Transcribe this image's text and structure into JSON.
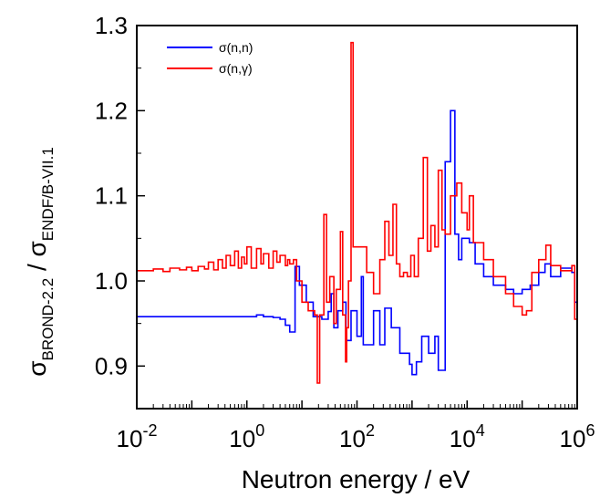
{
  "chart_data": {
    "type": "line",
    "xscale": "log",
    "xlim": [
      0.01,
      1000000
    ],
    "ylim": [
      0.85,
      1.3
    ],
    "xlabel": "Neutron energy / eV",
    "ylabel": {
      "base": "σ",
      "numerator_subscript": "BROND-2.2",
      "separator": " / ",
      "denominator_subscript": "ENDF/B-VII.1"
    },
    "x_ticks": [
      {
        "value": 0.01,
        "base": "10",
        "exp": "-2"
      },
      {
        "value": 1,
        "base": "10",
        "exp": "0"
      },
      {
        "value": 100,
        "base": "10",
        "exp": "2"
      },
      {
        "value": 10000,
        "base": "10",
        "exp": "4"
      },
      {
        "value": 1000000,
        "base": "10",
        "exp": "6"
      }
    ],
    "y_ticks": [
      {
        "value": 0.9,
        "label": "0.9"
      },
      {
        "value": 1.0,
        "label": "1.0"
      },
      {
        "value": 1.1,
        "label": "1.1"
      },
      {
        "value": 1.2,
        "label": "1.2"
      },
      {
        "value": 1.3,
        "label": "1.3"
      }
    ],
    "grid": false,
    "legend_position": "top-left",
    "series": [
      {
        "name": "σ(n,n)",
        "color": "#0000ff",
        "step": true,
        "points": [
          [
            0.01,
            0.958
          ],
          [
            1.0,
            0.958
          ],
          [
            1.5,
            0.96
          ],
          [
            2,
            0.958
          ],
          [
            3,
            0.957
          ],
          [
            4,
            0.955
          ],
          [
            5,
            0.948
          ],
          [
            6,
            0.94
          ],
          [
            7.5,
            1.017
          ],
          [
            9,
            0.995
          ],
          [
            12,
            0.975
          ],
          [
            16,
            0.958
          ],
          [
            23,
            0.955
          ],
          [
            30,
            0.964
          ],
          [
            34,
            0.985
          ],
          [
            38,
            0.945
          ],
          [
            45,
            0.965
          ],
          [
            55,
            0.975
          ],
          [
            63,
            0.93
          ],
          [
            78,
            0.965
          ],
          [
            100,
            0.935
          ],
          [
            120,
            1.005
          ],
          [
            130,
            0.925
          ],
          [
            200,
            0.965
          ],
          [
            260,
            0.925
          ],
          [
            320,
            0.968
          ],
          [
            420,
            0.945
          ],
          [
            600,
            0.915
          ],
          [
            900,
            0.902
          ],
          [
            1000,
            0.89
          ],
          [
            1200,
            0.905
          ],
          [
            1500,
            0.935
          ],
          [
            2000,
            0.915
          ],
          [
            2600,
            0.935
          ],
          [
            3000,
            0.895
          ],
          [
            4000,
            1.14
          ],
          [
            5000,
            1.2
          ],
          [
            6000,
            1.055
          ],
          [
            7000,
            1.025
          ],
          [
            8000,
            1.05
          ],
          [
            11000,
            1.045
          ],
          [
            14000,
            1.02
          ],
          [
            20000,
            1.005
          ],
          [
            30000,
            0.995
          ],
          [
            50000,
            0.99
          ],
          [
            70000,
            0.985
          ],
          [
            100000,
            0.99
          ],
          [
            140000,
            0.995
          ],
          [
            200000,
            1.01
          ],
          [
            260000,
            1.02
          ],
          [
            330000,
            1.005
          ],
          [
            500000,
            1.015
          ],
          [
            800000,
            1.01
          ],
          [
            900000,
            0.975
          ],
          [
            1000000,
            0.97
          ]
        ]
      },
      {
        "name": "σ(n,γ)",
        "color": "#ff0000",
        "step": true,
        "points": [
          [
            0.01,
            1.012
          ],
          [
            0.02,
            1.014
          ],
          [
            0.03,
            1.011
          ],
          [
            0.04,
            1.015
          ],
          [
            0.06,
            1.013
          ],
          [
            0.08,
            1.016
          ],
          [
            0.1,
            1.012
          ],
          [
            0.13,
            1.017
          ],
          [
            0.17,
            1.014
          ],
          [
            0.2,
            1.022
          ],
          [
            0.25,
            1.013
          ],
          [
            0.3,
            1.025
          ],
          [
            0.36,
            1.015
          ],
          [
            0.42,
            1.03
          ],
          [
            0.5,
            1.018
          ],
          [
            0.6,
            1.035
          ],
          [
            0.7,
            1.015
          ],
          [
            0.8,
            1.028
          ],
          [
            0.9,
            1.02
          ],
          [
            1.0,
            1.04
          ],
          [
            1.2,
            1.015
          ],
          [
            1.5,
            1.038
          ],
          [
            1.8,
            1.02
          ],
          [
            2.0,
            1.032
          ],
          [
            2.5,
            1.015
          ],
          [
            3.0,
            1.035
          ],
          [
            3.5,
            1.022
          ],
          [
            4.0,
            1.03
          ],
          [
            5.0,
            1.018
          ],
          [
            5.5,
            1.025
          ],
          [
            6.0,
            1.02
          ],
          [
            7.0,
            1.025
          ],
          [
            8.0,
            1.0
          ],
          [
            10,
            0.975
          ],
          [
            13,
            0.965
          ],
          [
            17,
            0.96
          ],
          [
            19,
            0.88
          ],
          [
            21,
            0.96
          ],
          [
            25,
            1.078
          ],
          [
            28,
            0.975
          ],
          [
            32,
            1.005
          ],
          [
            38,
            0.95
          ],
          [
            42,
            0.99
          ],
          [
            50,
            1.058
          ],
          [
            55,
            0.96
          ],
          [
            62,
            0.905
          ],
          [
            65,
            0.945
          ],
          [
            70,
            1.0
          ],
          [
            78,
            1.28
          ],
          [
            85,
            1.04
          ],
          [
            110,
            1.04
          ],
          [
            150,
            1.01
          ],
          [
            200,
            0.985
          ],
          [
            260,
            1.025
          ],
          [
            320,
            1.07
          ],
          [
            380,
            1.03
          ],
          [
            450,
            1.09
          ],
          [
            520,
            1.02
          ],
          [
            600,
            1.005
          ],
          [
            700,
            1.01
          ],
          [
            820,
            1.005
          ],
          [
            950,
            1.03
          ],
          [
            1100,
            1.005
          ],
          [
            1300,
            1.05
          ],
          [
            1600,
            1.145
          ],
          [
            1900,
            1.035
          ],
          [
            2200,
            1.065
          ],
          [
            2600,
            1.04
          ],
          [
            3000,
            1.13
          ],
          [
            3500,
            1.06
          ],
          [
            4000,
            1.055
          ],
          [
            5000,
            1.1
          ],
          [
            6500,
            1.115
          ],
          [
            8000,
            1.08
          ],
          [
            10000,
            1.06
          ],
          [
            11000,
            1.1
          ],
          [
            13000,
            1.045
          ],
          [
            20000,
            1.025
          ],
          [
            30000,
            1.005
          ],
          [
            50000,
            0.985
          ],
          [
            70000,
            0.97
          ],
          [
            100000,
            0.96
          ],
          [
            120000,
            0.965
          ],
          [
            150000,
            1.01
          ],
          [
            200000,
            1.025
          ],
          [
            270000,
            1.042
          ],
          [
            330000,
            1.018
          ],
          [
            500000,
            1.012
          ],
          [
            800000,
            1.018
          ],
          [
            900000,
            0.955
          ],
          [
            1000000,
            0.955
          ]
        ]
      }
    ]
  }
}
